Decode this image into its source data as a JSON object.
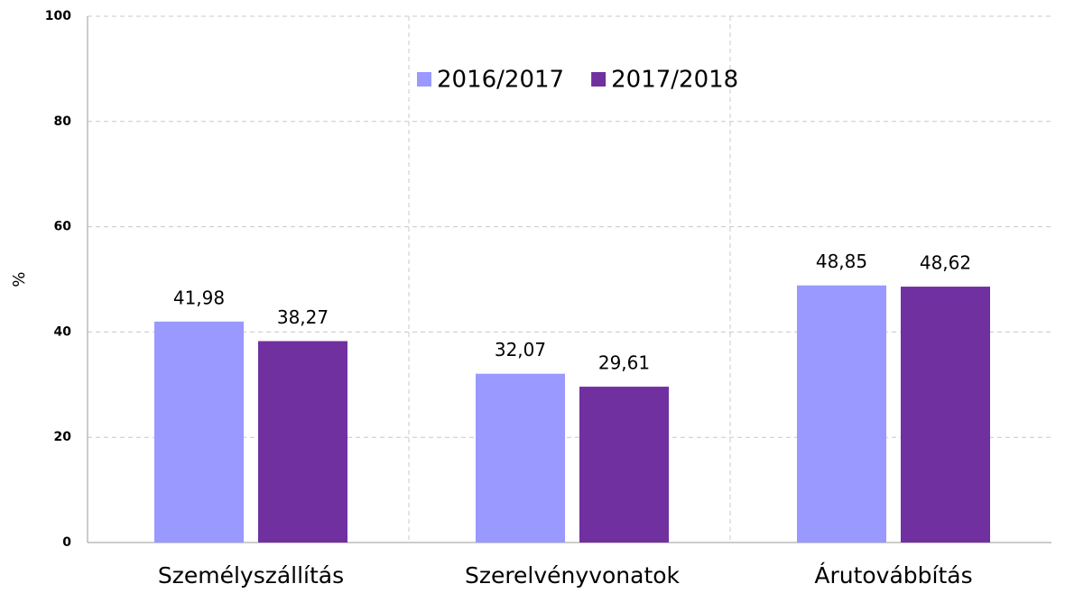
{
  "chart_data": {
    "type": "bar",
    "categories": [
      "Személyszállítás",
      "Szerelvényvonatok",
      "Árutovábbítás"
    ],
    "series": [
      {
        "name": "2016/2017",
        "color": "#9999ff",
        "values": [
          41.98,
          32.07,
          48.85
        ],
        "value_labels": [
          "41,98",
          "32,07",
          "48,85"
        ]
      },
      {
        "name": "2017/2018",
        "color": "#7030a0",
        "values": [
          38.27,
          29.61,
          48.62
        ],
        "value_labels": [
          "38,27",
          "29,61",
          "48,62"
        ]
      }
    ],
    "ylabel": "%",
    "ylim": [
      0,
      100
    ],
    "yticks": [
      0,
      20,
      40,
      60,
      80,
      100
    ],
    "grid": true,
    "legend": "top"
  }
}
